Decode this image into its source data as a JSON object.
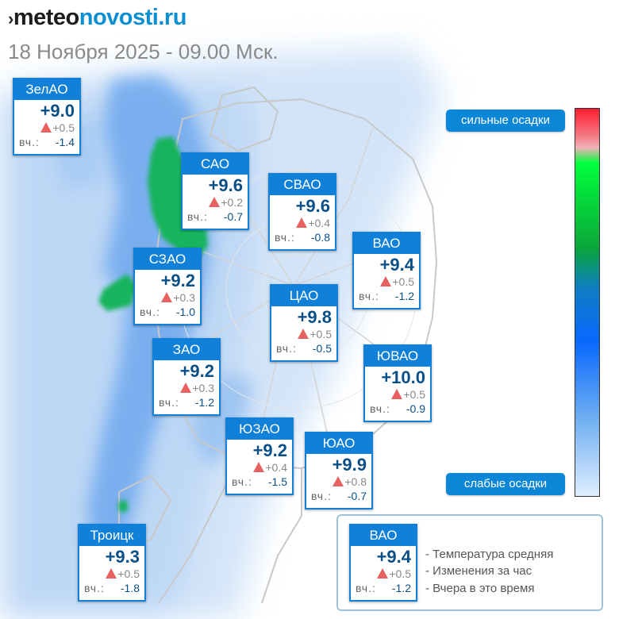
{
  "header": {
    "logo_mark": "›",
    "logo_part1": "meteo",
    "logo_part2": "novosti.ru",
    "subtitle": "18 Ноября 2025 - 09.00 Мск."
  },
  "districts": [
    {
      "name": "ЗелАО",
      "temp": "+9.0",
      "change": "+0.5",
      "yesterday_label": "вч.:",
      "yesterday": "-1.4"
    },
    {
      "name": "САО",
      "temp": "+9.6",
      "change": "+0.2",
      "yesterday_label": "вч.:",
      "yesterday": "-0.7"
    },
    {
      "name": "СВАО",
      "temp": "+9.6",
      "change": "+0.4",
      "yesterday_label": "вч.:",
      "yesterday": "-0.8"
    },
    {
      "name": "ВАО",
      "temp": "+9.4",
      "change": "+0.5",
      "yesterday_label": "вч.:",
      "yesterday": "-1.2"
    },
    {
      "name": "СЗАО",
      "temp": "+9.2",
      "change": "+0.3",
      "yesterday_label": "вч.:",
      "yesterday": "-1.0"
    },
    {
      "name": "ЦАО",
      "temp": "+9.8",
      "change": "+0.5",
      "yesterday_label": "вч.:",
      "yesterday": "-0.5"
    },
    {
      "name": "ЗАО",
      "temp": "+9.2",
      "change": "+0.3",
      "yesterday_label": "вч.:",
      "yesterday": "-1.2"
    },
    {
      "name": "ЮВАО",
      "temp": "+10.0",
      "change": "+0.5",
      "yesterday_label": "вч.:",
      "yesterday": "-0.9"
    },
    {
      "name": "ЮЗАО",
      "temp": "+9.2",
      "change": "+0.4",
      "yesterday_label": "вч.:",
      "yesterday": "-1.5"
    },
    {
      "name": "ЮАО",
      "temp": "+9.9",
      "change": "+0.8",
      "yesterday_label": "вч.:",
      "yesterday": "-0.7"
    },
    {
      "name": "Троицк",
      "temp": "+9.3",
      "change": "+0.5",
      "yesterday_label": "вч.:",
      "yesterday": "-1.8"
    }
  ],
  "scale": {
    "strong_label": "сильные осадки",
    "weak_label": "слабые осадки"
  },
  "legend": {
    "sample": {
      "name": "ВАО",
      "temp": "+9.4",
      "change": "+0.5",
      "yesterday_label": "вч.:",
      "yesterday": "-1.2"
    },
    "line1": "- Температура средняя",
    "line2": "- Изменения за час",
    "line3": "- Вчера в это время"
  },
  "colors": {
    "card_header": "#1080d8",
    "temp_text": "#0a4f86",
    "rise_arrow": "#e86161",
    "precip_light": "#d8e8fa",
    "precip_medium": "#4f94ec",
    "precip_heavy": "#12b05a"
  }
}
